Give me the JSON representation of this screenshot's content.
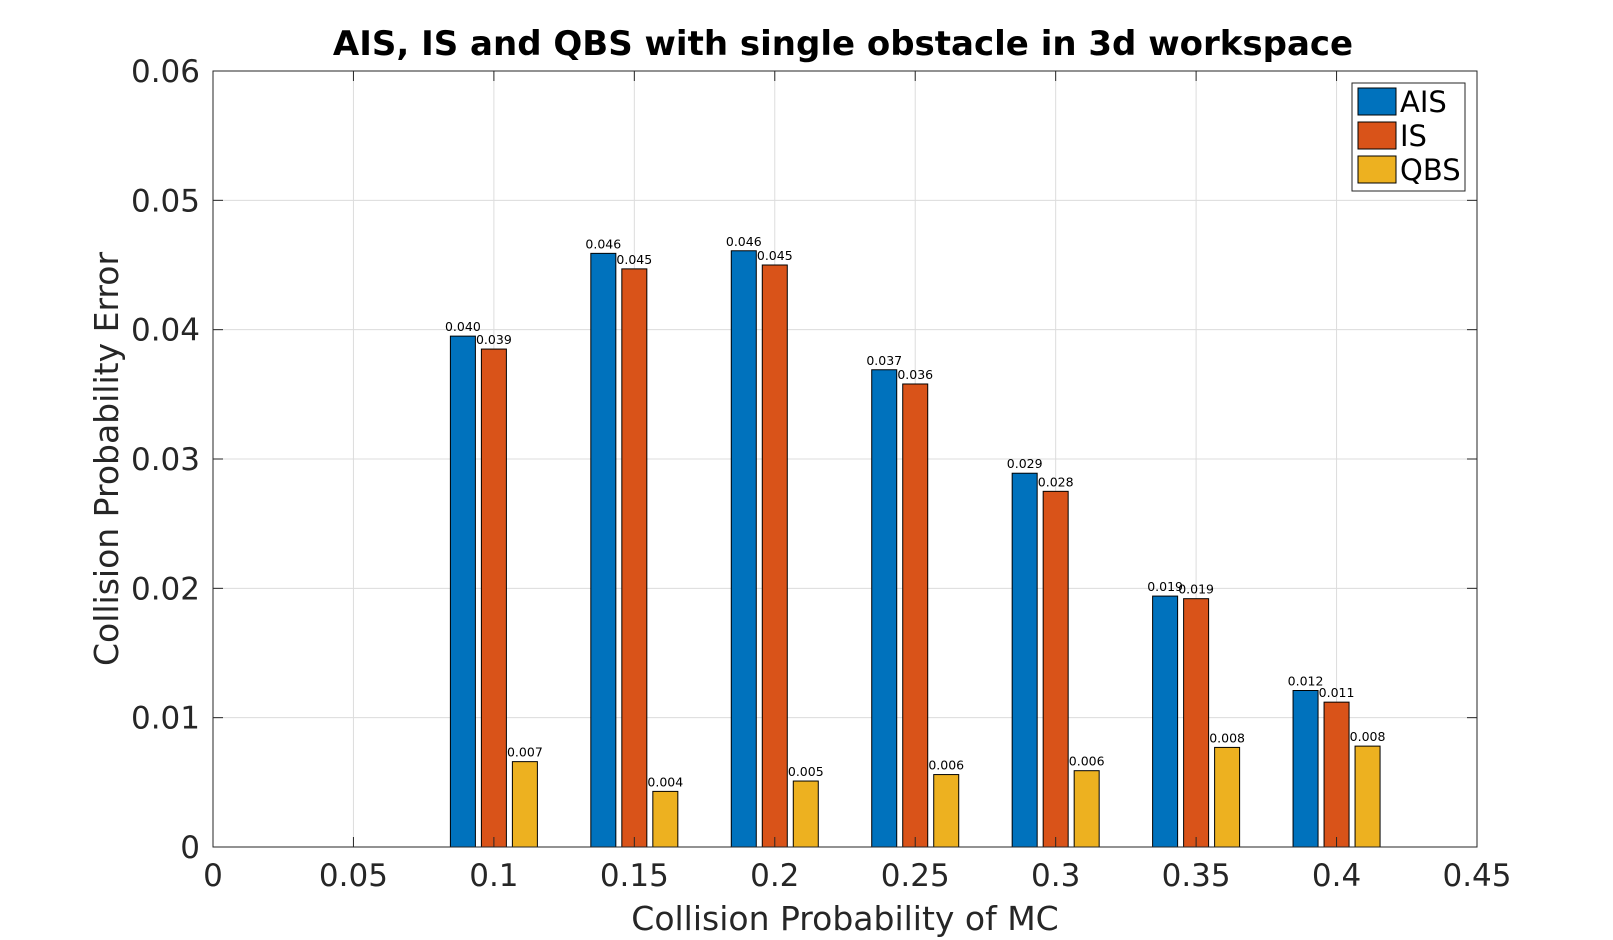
{
  "chart_data": {
    "type": "bar",
    "title": "AIS, IS and QBS with single obstacle in 3d workspace",
    "xlabel": "Collision Probability of MC",
    "ylabel": "Collision Probability Error",
    "xlim": [
      0,
      0.45
    ],
    "ylim": [
      0,
      0.06
    ],
    "xticks": [
      "0",
      "0.05",
      "0.1",
      "0.15",
      "0.2",
      "0.25",
      "0.3",
      "0.35",
      "0.4",
      "0.45"
    ],
    "yticks": [
      "0",
      "0.01",
      "0.02",
      "0.03",
      "0.04",
      "0.05",
      "0.06"
    ],
    "x": [
      0.1,
      0.15,
      0.2,
      0.25,
      0.3,
      0.35,
      0.4
    ],
    "grid": true,
    "legend_position": "top-right",
    "series": [
      {
        "name": "AIS",
        "color": "#0072BD",
        "values": [
          0.0395,
          0.0459,
          0.0461,
          0.0369,
          0.0289,
          0.0194,
          0.0121
        ],
        "labels": [
          "0.040",
          "0.046",
          "0.046",
          "0.037",
          "0.029",
          "0.019",
          "0.012"
        ]
      },
      {
        "name": "IS",
        "color": "#D95319",
        "values": [
          0.0385,
          0.0447,
          0.045,
          0.0358,
          0.0275,
          0.0192,
          0.0112
        ],
        "labels": [
          "0.039",
          "0.045",
          "0.045",
          "0.036",
          "0.028",
          "0.019",
          "0.011"
        ]
      },
      {
        "name": "QBS",
        "color": "#EDB120",
        "values": [
          0.0066,
          0.0043,
          0.0051,
          0.0056,
          0.0059,
          0.0077,
          0.0078
        ],
        "labels": [
          "0.007",
          "0.004",
          "0.005",
          "0.006",
          "0.006",
          "0.008",
          "0.008"
        ]
      }
    ]
  }
}
